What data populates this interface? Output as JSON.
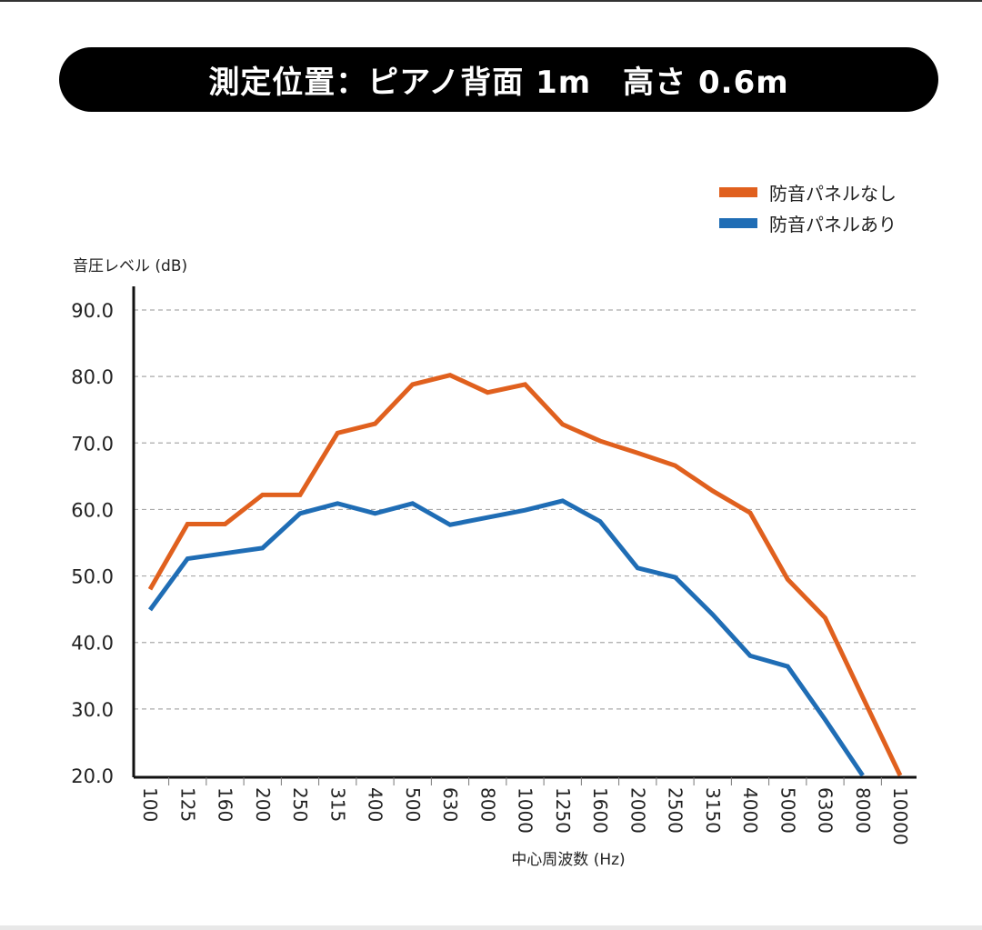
{
  "header": {
    "title": "測定位置：ピアノ背面 1m　高さ 0.6m"
  },
  "chart_data": {
    "type": "line",
    "title": "測定位置：ピアノ背面 1m　高さ 0.6m",
    "xlabel": "中心周波数 (Hz)",
    "ylabel": "音圧レベル (dB)",
    "ylim": [
      20,
      90
    ],
    "yticks": [
      "20.0",
      "30.0",
      "40.0",
      "50.0",
      "60.0",
      "70.0",
      "80.0",
      "90.0"
    ],
    "grid": true,
    "legend_position": "top-right",
    "categories": [
      "100",
      "125",
      "160",
      "200",
      "250",
      "315",
      "400",
      "500",
      "630",
      "800",
      "1000",
      "1250",
      "1600",
      "2000",
      "2500",
      "3150",
      "4000",
      "5000",
      "6300",
      "8000",
      "10000"
    ],
    "series": [
      {
        "name": "防音パネルなし",
        "color": "#e0601e",
        "values": [
          48.0,
          57.8,
          57.8,
          62.2,
          62.2,
          71.5,
          72.9,
          78.8,
          80.2,
          77.6,
          78.8,
          72.8,
          70.3,
          68.5,
          66.6,
          62.8,
          59.5,
          49.5,
          43.7,
          31.8,
          20.0
        ]
      },
      {
        "name": "防音パネルあり",
        "color": "#1f6db5",
        "values": [
          44.9,
          52.6,
          53.4,
          54.2,
          59.4,
          60.9,
          59.4,
          60.9,
          57.7,
          58.8,
          59.9,
          61.3,
          58.2,
          51.2,
          49.8,
          44.2,
          38.0,
          36.4,
          28.4,
          20.0,
          null
        ]
      }
    ]
  }
}
